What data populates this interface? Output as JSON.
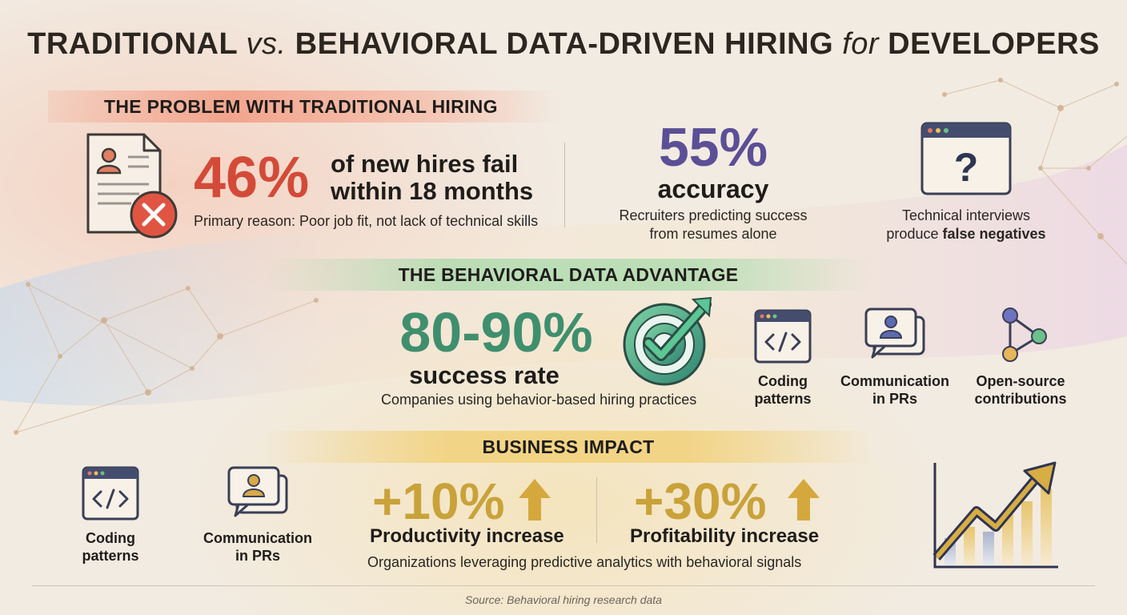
{
  "title": {
    "part1": "TRADITIONAL",
    "vs": "vs.",
    "part2": "BEHAVIORAL DATA-DRIVEN HIRING",
    "for": "for",
    "part3": "DEVELOPERS"
  },
  "problem": {
    "header": "THE PROBLEM WITH TRADITIONAL HIRING",
    "stat1": {
      "value": "46%",
      "line1": "of new hires fail",
      "line2": "within 18 months",
      "caption": "Primary reason: Poor job fit, not lack of technical skills"
    },
    "stat2": {
      "value": "55%",
      "label": "accuracy",
      "caption1": "Recruiters predicting success",
      "caption2": "from resumes alone"
    },
    "stat3": {
      "icon_glyph": "?",
      "caption1": "Technical interviews",
      "caption2_plain": "produce ",
      "caption2_bold": "false negatives"
    }
  },
  "advantage": {
    "header": "THE BEHAVIORAL DATA ADVANTAGE",
    "value": "80-90%",
    "label": "success rate",
    "caption": "Companies using behavior-based hiring practices",
    "signals": [
      {
        "line1": "Coding",
        "line2": "patterns",
        "icon": "code-window-icon"
      },
      {
        "line1": "Communication",
        "line2": "in PRs",
        "icon": "chat-person-icon"
      },
      {
        "line1": "Open-source",
        "line2": "contributions",
        "icon": "network-nodes-icon"
      }
    ]
  },
  "impact": {
    "header": "BUSINESS IMPACT",
    "signals": [
      {
        "line1": "Coding",
        "line2": "patterns",
        "icon": "code-window-icon"
      },
      {
        "line1": "Communication",
        "line2": "in PRs",
        "icon": "chat-person-icon"
      }
    ],
    "stat1": {
      "value": "+10%",
      "label": "Productivity increase"
    },
    "stat2": {
      "value": "+30%",
      "label": "Profitability increase"
    },
    "caption": "Organizations leveraging predictive analytics with behavioral signals"
  },
  "source": "Source: Behavioral hiring research data",
  "colors": {
    "red": "#d44a38",
    "purple": "#5b4f96",
    "green": "#3f8f6e",
    "gold": "#c9a23a"
  }
}
